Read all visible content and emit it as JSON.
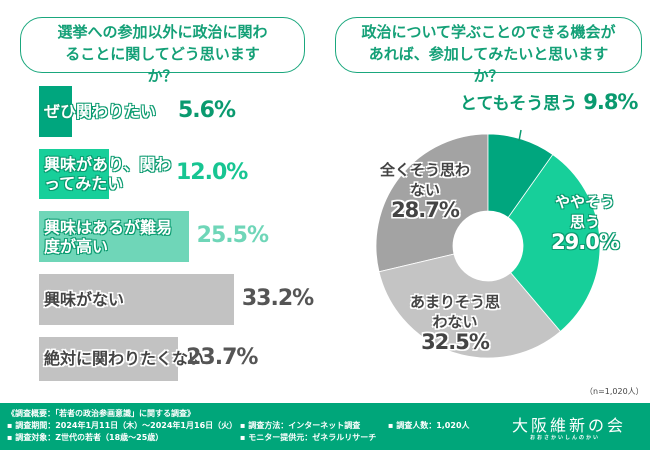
{
  "left_question": "選挙への参加以外に政治に関わることに関してどう思いますか？",
  "right_question": "政治について学ぶことのできる機会があれば、参加してみたいと思いますか？",
  "sample_note": "（n=1,020人）",
  "footer": {
    "overview": "《調査概要：「若者の政治参画意識」に関する調査》",
    "period": "▪ 調査期間：2024年1月11日（木）～2024年1月16日（火）",
    "target": "▪ 調査対象：Z世代の若者（18歳～25歳）",
    "method": "▪ 調査方法：インターネット調査",
    "provider": "▪ モニター提供元：ゼネラルリサーチ",
    "count": "▪ 調査人数：1,020人",
    "logo": "大阪維新の会",
    "logo_sub": "おおさかいしんのかい"
  },
  "chart_data": [
    {
      "type": "bar",
      "orientation": "horizontal",
      "title": "選挙への参加以外に政治に関わることに関してどう思いますか？",
      "categories": [
        "ぜひ関わりたい",
        "興味があり、関わってみたい",
        "興味はあるが難易度が高い",
        "興味がない",
        "絶対に関わりたくない"
      ],
      "values": [
        5.6,
        12.0,
        25.5,
        33.2,
        23.7
      ],
      "value_labels": [
        "5.6%",
        "12.0%",
        "25.5%",
        "33.2%",
        "23.7%"
      ],
      "colors": [
        "#00a67e",
        "#17cf9a",
        "#6fd6b8",
        "#c2c2c2",
        "#c2c2c2"
      ],
      "unit": "%"
    },
    {
      "type": "pie",
      "donut": true,
      "title": "政治について学ぶことのできる機会があれば、参加してみたいと思いますか？",
      "categories": [
        "とてもそう思う",
        "ややそう思う",
        "あまりそう思わない",
        "全くそう思わない"
      ],
      "values": [
        9.8,
        29.0,
        32.5,
        28.7
      ],
      "value_labels": [
        "9.8%",
        "29.0%",
        "32.5%",
        "28.7%"
      ],
      "colors": [
        "#00a67e",
        "#17cf9a",
        "#c4c4c4",
        "#a3a3a3"
      ],
      "unit": "%"
    }
  ]
}
